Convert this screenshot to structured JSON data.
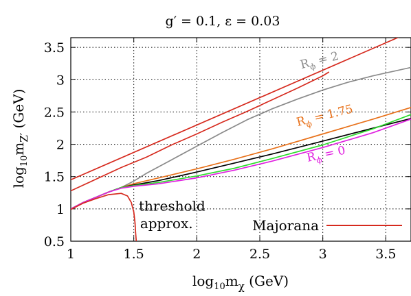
{
  "chart_data": {
    "type": "line",
    "title": "g′ =  0.1,  ε = 0.03",
    "xlabel": {
      "main": "log",
      "sub1": "10",
      "mid": "m",
      "sub2": "χ",
      "tail": " (GeV)"
    },
    "ylabel": {
      "main": "log",
      "sub1": "10",
      "mid": "m",
      "sub2": "Z′",
      "tail": " (GeV)"
    },
    "xlim": [
      1,
      3.7
    ],
    "ylim": [
      0.5,
      3.65
    ],
    "xticks": [
      {
        "v": 1,
        "label": "1"
      },
      {
        "v": 1.5,
        "label": "1.5"
      },
      {
        "v": 2,
        "label": "2"
      },
      {
        "v": 2.5,
        "label": "2.5"
      },
      {
        "v": 3,
        "label": "3"
      },
      {
        "v": 3.5,
        "label": "3.5"
      }
    ],
    "yticks": [
      {
        "v": 0.5,
        "label": "0.5"
      },
      {
        "v": 1,
        "label": "1"
      },
      {
        "v": 1.5,
        "label": "1.5"
      },
      {
        "v": 2,
        "label": "2"
      },
      {
        "v": 2.5,
        "label": "2.5"
      },
      {
        "v": 3,
        "label": "3"
      },
      {
        "v": 3.5,
        "label": "3.5"
      }
    ],
    "grid": "dotted",
    "legend": {
      "label": "Majorana",
      "color": "#d62a1e",
      "placement": "bottom-right"
    },
    "series": [
      {
        "id": "majorana-upper",
        "color": "#d62a1e",
        "x": [
          1.0,
          3.7
        ],
        "y": [
          1.45,
          3.74
        ]
      },
      {
        "id": "majorana-lower",
        "color": "#d62a1e",
        "x": [
          1.0,
          1.2,
          1.4,
          1.6,
          1.8,
          2.0,
          2.2,
          2.4,
          2.6,
          2.8,
          3.0,
          3.05
        ],
        "y": [
          1.28,
          1.46,
          1.64,
          1.8,
          1.99,
          2.16,
          2.34,
          2.51,
          2.69,
          2.87,
          3.06,
          3.12
        ]
      },
      {
        "id": "r-phi-2",
        "color": "#8a8a8a",
        "x": [
          1.0,
          1.1,
          1.2,
          1.3,
          1.4,
          1.5,
          1.6,
          1.8,
          2.0,
          2.2,
          2.4,
          2.6,
          2.8,
          3.0,
          3.2,
          3.4,
          3.7
        ],
        "y": [
          1.0,
          1.1,
          1.18,
          1.26,
          1.33,
          1.43,
          1.55,
          1.76,
          1.97,
          2.18,
          2.38,
          2.55,
          2.7,
          2.84,
          2.96,
          3.06,
          3.19
        ]
      },
      {
        "id": "r-phi-1.75",
        "color": "#e8711a",
        "x": [
          1.0,
          1.1,
          1.2,
          1.3,
          1.4,
          1.5,
          1.7,
          2.0,
          2.3,
          2.6,
          3.0,
          3.4,
          3.7
        ],
        "y": [
          1.0,
          1.1,
          1.18,
          1.26,
          1.33,
          1.39,
          1.48,
          1.62,
          1.77,
          1.93,
          2.16,
          2.39,
          2.57
        ]
      },
      {
        "id": "r-phi-black",
        "color": "#000000",
        "x": [
          1.0,
          1.1,
          1.2,
          1.3,
          1.4,
          1.5,
          1.7,
          2.0,
          2.3,
          2.6,
          3.0,
          3.4,
          3.7
        ],
        "y": [
          1.0,
          1.1,
          1.18,
          1.26,
          1.33,
          1.37,
          1.44,
          1.57,
          1.71,
          1.85,
          2.05,
          2.25,
          2.4
        ]
      },
      {
        "id": "r-phi-green",
        "color": "#2fdb2f",
        "x": [
          1.0,
          1.1,
          1.2,
          1.3,
          1.4,
          1.5,
          1.7,
          2.0,
          2.3,
          2.6,
          3.0,
          3.4,
          3.7
        ],
        "y": [
          1.0,
          1.1,
          1.18,
          1.26,
          1.33,
          1.36,
          1.41,
          1.51,
          1.63,
          1.78,
          1.99,
          2.24,
          2.46
        ]
      },
      {
        "id": "r-phi-0",
        "color": "#e020e0",
        "x": [
          1.0,
          1.1,
          1.2,
          1.3,
          1.4,
          1.5,
          1.7,
          2.0,
          2.3,
          2.6,
          3.0,
          3.4,
          3.7
        ],
        "y": [
          1.0,
          1.1,
          1.18,
          1.26,
          1.32,
          1.35,
          1.39,
          1.48,
          1.6,
          1.74,
          1.95,
          2.18,
          2.39
        ]
      },
      {
        "id": "threshold-approx",
        "color": "#d62a1e",
        "x": [
          1.0,
          1.1,
          1.2,
          1.3,
          1.4,
          1.45,
          1.48,
          1.5,
          1.51,
          1.515,
          1.52
        ],
        "y": [
          0.99,
          1.09,
          1.16,
          1.22,
          1.24,
          1.2,
          1.1,
          0.95,
          0.78,
          0.62,
          0.5
        ]
      }
    ],
    "annotations": [
      {
        "id": "r-phi-2",
        "text": "R",
        "sub": "ϕ",
        "tail": " = 2",
        "color": "#8a8a8a",
        "x": 2.83,
        "y": 3.17,
        "rotate": -14
      },
      {
        "id": "r-phi-1.75",
        "text": "R",
        "sub": "ϕ",
        "tail": " = 1.75",
        "color": "#e8711a",
        "x": 2.8,
        "y": 2.28,
        "rotate": -14
      },
      {
        "id": "r-phi-0",
        "text": "R",
        "sub": "ϕ",
        "tail": " = 0",
        "color": "#e020e0",
        "x": 2.88,
        "y": 1.73,
        "rotate": -12
      },
      {
        "id": "threshold",
        "text": "threshold",
        "color": "#000000",
        "x": 1.54,
        "y": 0.97,
        "rotate": 0
      },
      {
        "id": "approx",
        "text": "approx.",
        "color": "#000000",
        "x": 1.55,
        "y": 0.7,
        "rotate": 0
      }
    ]
  }
}
